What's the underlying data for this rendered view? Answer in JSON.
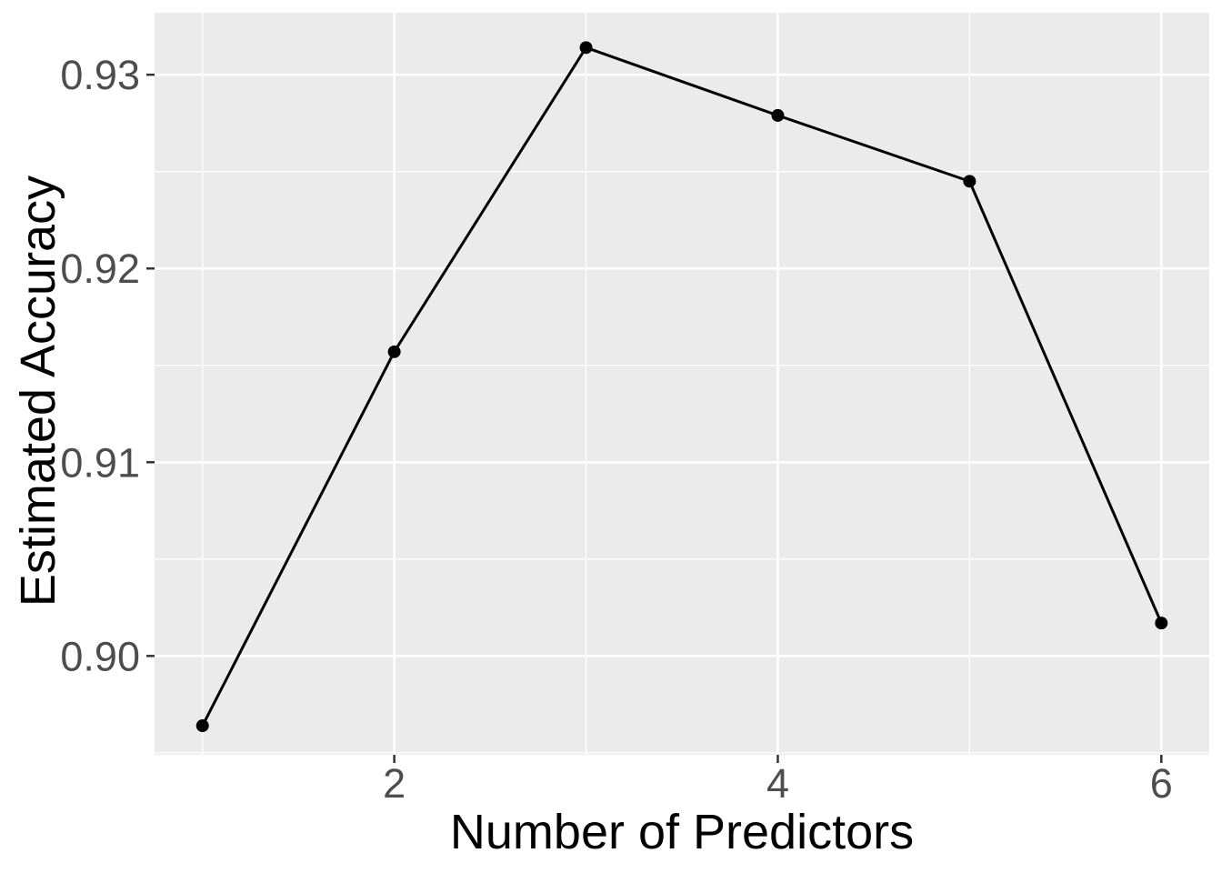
{
  "figure": {
    "background": "#FFFFFF",
    "panel_background": "#EBEBEB",
    "grid_color": "#FFFFFF"
  },
  "chart_data": {
    "type": "line",
    "title": "",
    "xlabel": "Number of Predictors",
    "ylabel": "Estimated Accuracy",
    "x": [
      1,
      2,
      3,
      4,
      5,
      6
    ],
    "y": [
      0.8964,
      0.9157,
      0.9314,
      0.9279,
      0.9245,
      0.9017
    ],
    "xlim": [
      0.75,
      6.25
    ],
    "ylim": [
      0.8949,
      0.9332
    ],
    "x_major_ticks": [
      2,
      4,
      6
    ],
    "x_tick_labels": [
      "2",
      "4",
      "6"
    ],
    "x_minor_ticks": [
      1,
      3,
      5
    ],
    "y_major_ticks": [
      0.9,
      0.91,
      0.92,
      0.93
    ],
    "y_tick_labels": [
      "0.90",
      "0.91",
      "0.92",
      "0.93"
    ],
    "y_minor_ticks": [
      0.895,
      0.905,
      0.915,
      0.925
    ],
    "grid": true,
    "legend_position": "none",
    "line_color": "#000000",
    "point_color": "#000000",
    "line_width": 3,
    "point_radius": 7,
    "tick_label_color": "#4D4D4D",
    "axis_title_color": "#000000",
    "tick_mark_color": "#333333"
  }
}
